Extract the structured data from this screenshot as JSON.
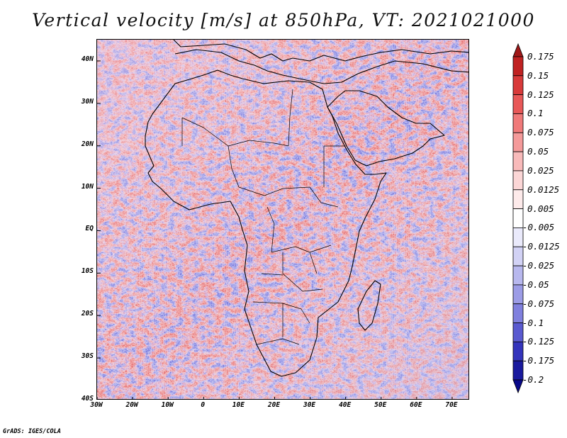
{
  "title": "Vertical velocity [m/s] at 850hPa, VT: 2021021000",
  "credit": "GrADS: IGES/COLA",
  "map": {
    "lon_range": [
      -30,
      75
    ],
    "lat_range": [
      -40,
      45
    ],
    "lat_labels": [
      {
        "value": 40,
        "label": "40N"
      },
      {
        "value": 30,
        "label": "30N"
      },
      {
        "value": 20,
        "label": "20N"
      },
      {
        "value": 10,
        "label": "10N"
      },
      {
        "value": 0,
        "label": "EQ"
      },
      {
        "value": -10,
        "label": "10S"
      },
      {
        "value": -20,
        "label": "20S"
      },
      {
        "value": -30,
        "label": "30S"
      },
      {
        "value": -40,
        "label": "40S"
      }
    ],
    "lon_labels": [
      {
        "value": -30,
        "label": "30W"
      },
      {
        "value": -20,
        "label": "20W"
      },
      {
        "value": -10,
        "label": "10W"
      },
      {
        "value": 0,
        "label": "0"
      },
      {
        "value": 10,
        "label": "10E"
      },
      {
        "value": 20,
        "label": "20E"
      },
      {
        "value": 30,
        "label": "30E"
      },
      {
        "value": 40,
        "label": "40E"
      },
      {
        "value": 50,
        "label": "50E"
      },
      {
        "value": 60,
        "label": "60E"
      },
      {
        "value": 70,
        "label": "70E"
      }
    ]
  },
  "colorbar": {
    "labels": [
      "0.175",
      "0.15",
      "0.125",
      "0.1",
      "0.075",
      "0.05",
      "0.025",
      "0.0125",
      "0.005",
      "-0.005",
      "-0.0125",
      "-0.025",
      "-0.05",
      "-0.075",
      "-0.1",
      "-0.125",
      "-0.175",
      "-0.2"
    ],
    "colors": [
      "#a01818",
      "#c02222",
      "#d83a3a",
      "#e85858",
      "#f07a7a",
      "#f49a9a",
      "#f8baba",
      "#fbd6d6",
      "#fdeaea",
      "#ffffff",
      "#eaeafb",
      "#d2d2f5",
      "#b8b8ee",
      "#9c9ce6",
      "#8080de",
      "#5a5ad0",
      "#3434bc",
      "#1a1a9e",
      "#08088a"
    ]
  }
}
